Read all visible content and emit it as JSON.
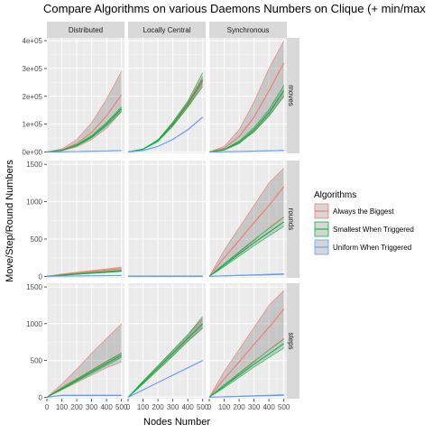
{
  "chart_data": {
    "type": "line",
    "title": "Compare Algorithms on various Daemons Numbers on Clique (+ min/max",
    "xlabel": "Nodes Number",
    "ylabel": "Move/Step/Round Numbers",
    "col_facets": [
      "Distributed",
      "Locally Central",
      "Synchronous"
    ],
    "row_facets": [
      "moves",
      "rounds",
      "steps"
    ],
    "xlim": [
      0,
      520
    ],
    "x_ticks": [
      0,
      100,
      200,
      300,
      400,
      500
    ],
    "x_tick_labels": [
      "0",
      "100",
      "200",
      "300",
      "400",
      "500"
    ],
    "x": [
      0,
      100,
      200,
      300,
      400,
      500
    ],
    "rows": {
      "moves": {
        "ylim": [
          -5000,
          410000
        ],
        "y_ticks": [
          0,
          100000,
          200000,
          300000,
          400000
        ],
        "y_tick_labels": [
          "0e+00",
          "1e+05",
          "2e+05",
          "3e+05",
          "4e+05"
        ]
      },
      "rounds": {
        "ylim": [
          -20,
          1550
        ],
        "y_ticks": [
          0,
          500,
          1000,
          1500
        ],
        "y_tick_labels": [
          "0",
          "500",
          "1000",
          "1500"
        ]
      },
      "steps": {
        "ylim": [
          -20,
          1550
        ],
        "y_ticks": [
          0,
          500,
          1000,
          1500
        ],
        "y_tick_labels": [
          "0",
          "500",
          "1000",
          "1500"
        ]
      }
    },
    "legend": {
      "title": "Algorithms",
      "placement": "right",
      "items": [
        {
          "name": "Always the Biggest",
          "color": "#F8766D"
        },
        {
          "name": "Smallest When Triggered",
          "color": "#00BA38"
        },
        {
          "name": "Uniform When Triggered",
          "color": "#619CFF"
        }
      ]
    },
    "panels": [
      {
        "row": "moves",
        "col": "Distributed",
        "series": [
          {
            "name": "Always the Biggest",
            "mean": [
              0,
              7000,
              30000,
              70000,
              130000,
              205000
            ],
            "min": [
              0,
              4000,
              18000,
              45000,
              85000,
              145000
            ],
            "max": [
              0,
              11000,
              45000,
              105000,
              190000,
              290000
            ]
          },
          {
            "name": "Smallest When Triggered",
            "mean": [
              0,
              6000,
              24000,
              55000,
              100000,
              155000
            ],
            "min": [
              0,
              5500,
              22000,
              51000,
              94000,
              146000
            ],
            "max": [
              0,
              6500,
              26000,
              59000,
              106000,
              162000
            ]
          },
          {
            "name": "Uniform When Triggered",
            "mean": [
              0,
              600,
              1500,
              2500,
              3500,
              5000
            ],
            "min": [
              0,
              500,
              1300,
              2200,
              3100,
              4500
            ],
            "max": [
              0,
              700,
              1700,
              2800,
              3900,
              5500
            ]
          }
        ]
      },
      {
        "row": "moves",
        "col": "Locally Central",
        "series": [
          {
            "name": "Always the Biggest",
            "mean": [
              0,
              10000,
              40000,
              100000,
              170000,
              255000
            ],
            "min": [
              0,
              9500,
              38000,
              95000,
              163000,
              243000
            ],
            "max": [
              0,
              10500,
              42000,
              105000,
              178000,
              270000
            ]
          },
          {
            "name": "Smallest When Triggered",
            "mean": [
              0,
              10000,
              41000,
              100000,
              172000,
              260000
            ],
            "min": [
              0,
              9000,
              37000,
              93000,
              160000,
              235000
            ],
            "max": [
              0,
              11000,
              44000,
              108000,
              183000,
              285000
            ]
          },
          {
            "name": "Uniform When Triggered",
            "mean": [
              0,
              5000,
              20000,
              45000,
              80000,
              125000
            ],
            "min": [
              0,
              4900,
              19800,
              44500,
              79000,
              124000
            ],
            "max": [
              0,
              5100,
              20200,
              45500,
              81000,
              126000
            ]
          }
        ]
      },
      {
        "row": "moves",
        "col": "Synchronous",
        "series": [
          {
            "name": "Always the Biggest",
            "mean": [
              0,
              13000,
              55000,
              125000,
              220000,
              320000
            ],
            "min": [
              0,
              6000,
              30000,
              75000,
              130000,
              200000
            ],
            "max": [
              0,
              20000,
              80000,
              180000,
              300000,
              400000
            ]
          },
          {
            "name": "Smallest When Triggered",
            "mean": [
              0,
              8000,
              35000,
              80000,
              140000,
              220000
            ],
            "min": [
              0,
              7000,
              31000,
              72000,
              128000,
              200000
            ],
            "max": [
              0,
              9000,
              39000,
              88000,
              152000,
              240000
            ]
          },
          {
            "name": "Uniform When Triggered",
            "mean": [
              0,
              700,
              1600,
              2800,
              4000,
              5500
            ],
            "min": [
              0,
              600,
              1400,
              2400,
              3500,
              5000
            ],
            "max": [
              0,
              800,
              1800,
              3200,
              4500,
              6000
            ]
          }
        ]
      },
      {
        "row": "rounds",
        "col": "Distributed",
        "series": [
          {
            "name": "Always the Biggest",
            "mean": [
              0,
              25,
              45,
              65,
              85,
              105
            ],
            "min": [
              0,
              18,
              35,
              52,
              70,
              85
            ],
            "max": [
              0,
              32,
              55,
              78,
              100,
              125
            ]
          },
          {
            "name": "Smallest When Triggered",
            "mean": [
              0,
              15,
              30,
              45,
              58,
              72
            ],
            "min": [
              0,
              13,
              26,
              40,
              52,
              65
            ],
            "max": [
              0,
              17,
              34,
              50,
              64,
              80
            ]
          },
          {
            "name": "Uniform When Triggered",
            "mean": [
              0,
              3,
              5,
              7,
              9,
              11
            ],
            "min": [
              0,
              2,
              4,
              6,
              8,
              10
            ],
            "max": [
              0,
              4,
              6,
              8,
              10,
              12
            ]
          }
        ]
      },
      {
        "row": "rounds",
        "col": "Locally Central",
        "series": [
          {
            "name": "Always the Biggest",
            "mean": [
              1,
              1,
              1,
              1,
              1,
              1
            ],
            "min": [
              1,
              1,
              1,
              1,
              1,
              1
            ],
            "max": [
              2,
              2,
              2,
              2,
              2,
              2
            ]
          },
          {
            "name": "Smallest When Triggered",
            "mean": [
              1,
              1,
              1,
              1,
              1,
              1
            ],
            "min": [
              1,
              1,
              1,
              1,
              1,
              1
            ],
            "max": [
              2,
              2,
              2,
              2,
              2,
              2
            ]
          },
          {
            "name": "Uniform When Triggered",
            "mean": [
              1,
              1,
              1,
              1,
              1,
              1
            ],
            "min": [
              1,
              1,
              1,
              1,
              1,
              1
            ],
            "max": [
              2,
              2,
              2,
              2,
              2,
              2
            ]
          }
        ]
      },
      {
        "row": "rounds",
        "col": "Synchronous",
        "series": [
          {
            "name": "Always the Biggest",
            "mean": [
              0,
              250,
              480,
              720,
              950,
              1200
            ],
            "min": [
              0,
              150,
              320,
              480,
              650,
              800
            ],
            "max": [
              0,
              350,
              650,
              950,
              1250,
              1450
            ]
          },
          {
            "name": "Smallest When Triggered",
            "mean": [
              0,
              150,
              300,
              450,
              590,
              730
            ],
            "min": [
              0,
              130,
              270,
              410,
              540,
              670
            ],
            "max": [
              0,
              170,
              330,
              490,
              640,
              790
            ]
          },
          {
            "name": "Uniform When Triggered",
            "mean": [
              0,
              6,
              12,
              18,
              24,
              30
            ],
            "min": [
              0,
              4,
              9,
              14,
              19,
              24
            ],
            "max": [
              0,
              8,
              15,
              22,
              29,
              36
            ]
          }
        ]
      },
      {
        "row": "steps",
        "col": "Distributed",
        "series": [
          {
            "name": "Always the Biggest",
            "mean": [
              0,
              130,
              250,
              370,
              490,
              600
            ],
            "min": [
              0,
              100,
              200,
              300,
              400,
              480
            ],
            "max": [
              0,
              180,
              380,
              600,
              800,
              1000
            ]
          },
          {
            "name": "Smallest When Triggered",
            "mean": [
              0,
              115,
              230,
              345,
              460,
              570
            ],
            "min": [
              0,
              105,
              215,
              325,
              435,
              545
            ],
            "max": [
              0,
              125,
              245,
              365,
              485,
              600
            ]
          },
          {
            "name": "Uniform When Triggered",
            "mean": [
              0,
              25,
              25,
              25,
              25,
              25
            ],
            "min": [
              0,
              22,
              22,
              22,
              22,
              22
            ],
            "max": [
              0,
              28,
              28,
              28,
              28,
              28
            ]
          }
        ]
      },
      {
        "row": "steps",
        "col": "Locally Central",
        "series": [
          {
            "name": "Always the Biggest",
            "mean": [
              0,
              200,
              400,
              600,
              800,
              1000
            ],
            "min": [
              0,
              180,
              370,
              560,
              760,
              940
            ],
            "max": [
              0,
              220,
              430,
              640,
              850,
              1070
            ]
          },
          {
            "name": "Smallest When Triggered",
            "mean": [
              0,
              200,
              400,
              600,
              800,
              1000
            ],
            "min": [
              0,
              180,
              370,
              560,
              760,
              940
            ],
            "max": [
              0,
              220,
              430,
              640,
              850,
              1100
            ]
          },
          {
            "name": "Uniform When Triggered",
            "mean": [
              0,
              100,
              200,
              300,
              400,
              500
            ],
            "min": [
              0,
              99,
              199,
              299,
              399,
              498
            ],
            "max": [
              0,
              101,
              201,
              301,
              401,
              502
            ]
          }
        ]
      },
      {
        "row": "steps",
        "col": "Synchronous",
        "series": [
          {
            "name": "Always the Biggest",
            "mean": [
              0,
              250,
              480,
              720,
              950,
              1200
            ],
            "min": [
              0,
              150,
              320,
              480,
              650,
              800
            ],
            "max": [
              0,
              350,
              650,
              950,
              1250,
              1450
            ]
          },
          {
            "name": "Smallest When Triggered",
            "mean": [
              0,
              150,
              300,
              450,
              590,
              730
            ],
            "min": [
              0,
              130,
              270,
              410,
              540,
              670
            ],
            "max": [
              0,
              170,
              330,
              490,
              640,
              790
            ]
          },
          {
            "name": "Uniform When Triggered",
            "mean": [
              0,
              6,
              12,
              18,
              24,
              30
            ],
            "min": [
              0,
              4,
              9,
              14,
              19,
              24
            ],
            "max": [
              0,
              8,
              15,
              22,
              29,
              36
            ]
          }
        ]
      }
    ]
  }
}
